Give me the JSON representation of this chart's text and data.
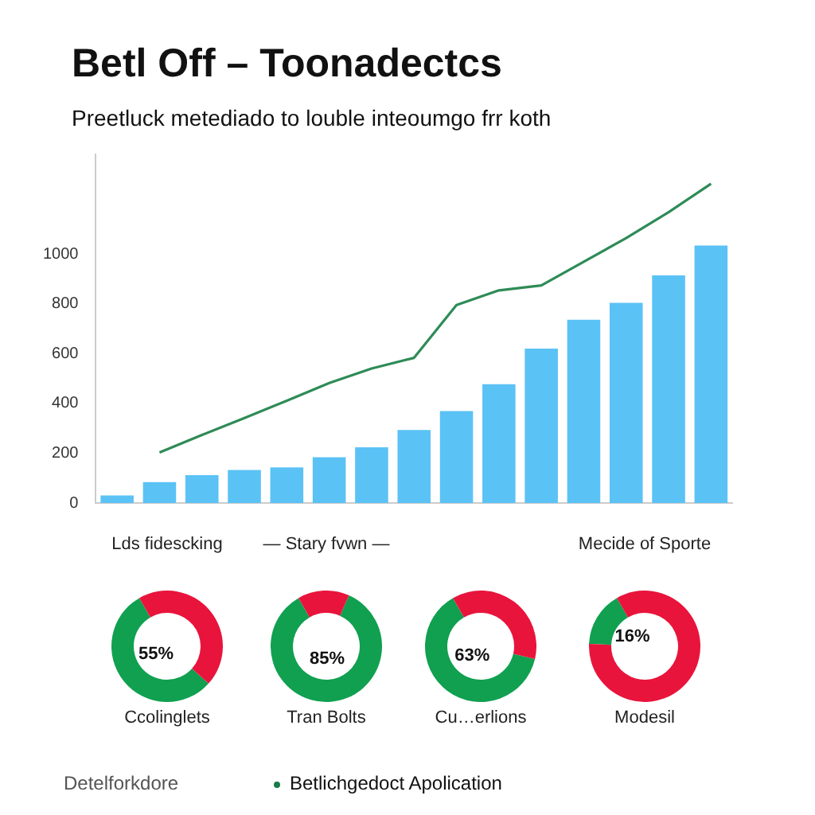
{
  "chart_data": [
    {
      "type": "bar",
      "title": "Betl Off – Toonadectcs",
      "subtitle": "Preetluck metediado to louble inteoumgo frr koth",
      "categories": [
        null,
        null,
        null,
        null,
        null,
        null,
        null,
        null,
        null,
        null,
        null,
        null,
        null,
        null,
        null
      ],
      "series": [
        {
          "type": "bar",
          "color": "#5bc2f5",
          "values": [
            30,
            84,
            112,
            133,
            143,
            184,
            224,
            293,
            369,
            477,
            620,
            736,
            804,
            914,
            1034
          ]
        },
        {
          "type": "line",
          "color": "#2e8b57",
          "values": [
            null,
            203,
            273,
            341,
            411,
            482,
            540,
            583,
            795,
            854,
            874,
            969,
            1064,
            1168,
            1282
          ]
        }
      ],
      "marker": "none",
      "ylim": [
        0,
        1400
      ],
      "yticks": [
        0,
        200,
        400,
        600,
        800,
        1000
      ],
      "grid": false,
      "legend": false
    },
    {
      "type": "donut",
      "title": "Ccolinglets",
      "categories": [
        null,
        null
      ],
      "values": [
        55,
        45
      ],
      "colors": [
        "#10a050",
        "#e8143c"
      ],
      "value_labels": [
        "55%",
        null
      ],
      "annotations": [
        "Lds fidescking"
      ]
    },
    {
      "type": "donut",
      "title": "Tran Bolts",
      "categories": [
        null,
        null
      ],
      "values": [
        85,
        15
      ],
      "colors": [
        "#10a050",
        "#e8143c"
      ],
      "value_labels": [
        "85%",
        null
      ],
      "annotations": [
        "— Stary fvwn —"
      ]
    },
    {
      "type": "donut",
      "title": "Cu…erlions",
      "categories": [
        null,
        null
      ],
      "values": [
        63,
        37
      ],
      "colors": [
        "#10a050",
        "#e8143c"
      ],
      "value_labels": [
        "63%",
        null
      ]
    },
    {
      "type": "donut",
      "title": "Modesil",
      "categories": [
        null,
        null
      ],
      "values": [
        16,
        84
      ],
      "colors": [
        "#10a050",
        "#e8143c"
      ],
      "value_labels": [
        "16%",
        null
      ],
      "annotations": [
        "Mecide of Sporte"
      ]
    },
    {
      "type": "other",
      "annotations": [
        "Detelforkdore",
        "Betlichgedoct Apolication"
      ]
    }
  ]
}
